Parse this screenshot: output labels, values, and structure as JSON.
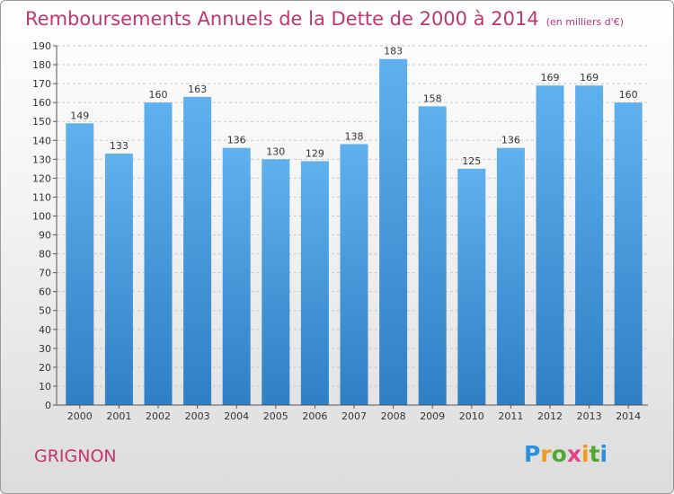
{
  "title": "Remboursements Annuels de la Dette de 2000 à 2014",
  "unit_note": "(en milliers d'€)",
  "city": "GRIGNON",
  "logo": {
    "text": "Proxiti"
  },
  "colors": {
    "bar_top": "#5fb1ee",
    "bar_bottom": "#2f7fc5",
    "title": "#c0366f"
  },
  "chart_data": {
    "type": "bar",
    "title": "Remboursements Annuels de la Dette de 2000 à 2014",
    "ylabel": "en milliers d'€",
    "xlabel": "",
    "categories": [
      "2000",
      "2001",
      "2002",
      "2003",
      "2004",
      "2005",
      "2006",
      "2007",
      "2008",
      "2009",
      "2010",
      "2011",
      "2012",
      "2013",
      "2014"
    ],
    "values": [
      149,
      133,
      160,
      163,
      136,
      130,
      129,
      138,
      183,
      158,
      125,
      136,
      169,
      169,
      160
    ],
    "ylim": [
      0,
      190
    ],
    "ytick_step": 10,
    "grid": true
  }
}
